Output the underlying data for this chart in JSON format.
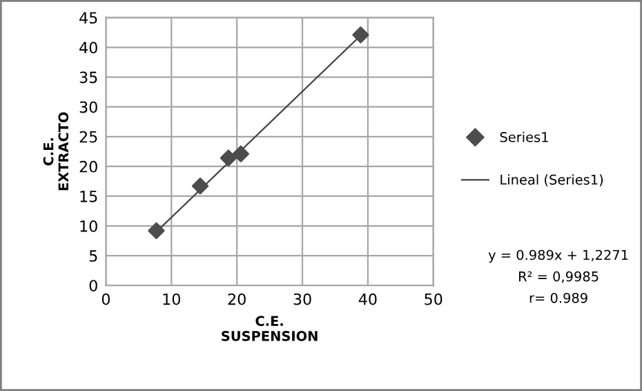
{
  "chart_data": {
    "type": "scatter",
    "xlabel": "C.E.\nSUSPENSION",
    "ylabel": "C.E.\nEXTRACTO",
    "xlim": [
      0,
      50
    ],
    "xticks": [
      0,
      10,
      20,
      30,
      40,
      50
    ],
    "ylim": [
      0,
      45
    ],
    "yticks": [
      0,
      5,
      10,
      15,
      20,
      25,
      30,
      35,
      40,
      45
    ],
    "grid": true,
    "legend": "right",
    "series": [
      {
        "name": "Series1",
        "marker": "diamond",
        "color": "#4d4d4d",
        "x": [
          7.7,
          14.4,
          18.7,
          20.6,
          38.9
        ],
        "values": [
          9.2,
          16.7,
          21.4,
          22.1,
          42.1
        ]
      },
      {
        "name": "Lineal (Series1)",
        "type": "line",
        "color": "#404040",
        "line_style": "solid",
        "x": [
          7.7,
          38.9
        ],
        "values": [
          9.0,
          42.0
        ]
      }
    ],
    "annotations": [
      "y = 0.989x + 1,2271",
      "R² = 0,9985",
      "r= 0.989"
    ]
  }
}
